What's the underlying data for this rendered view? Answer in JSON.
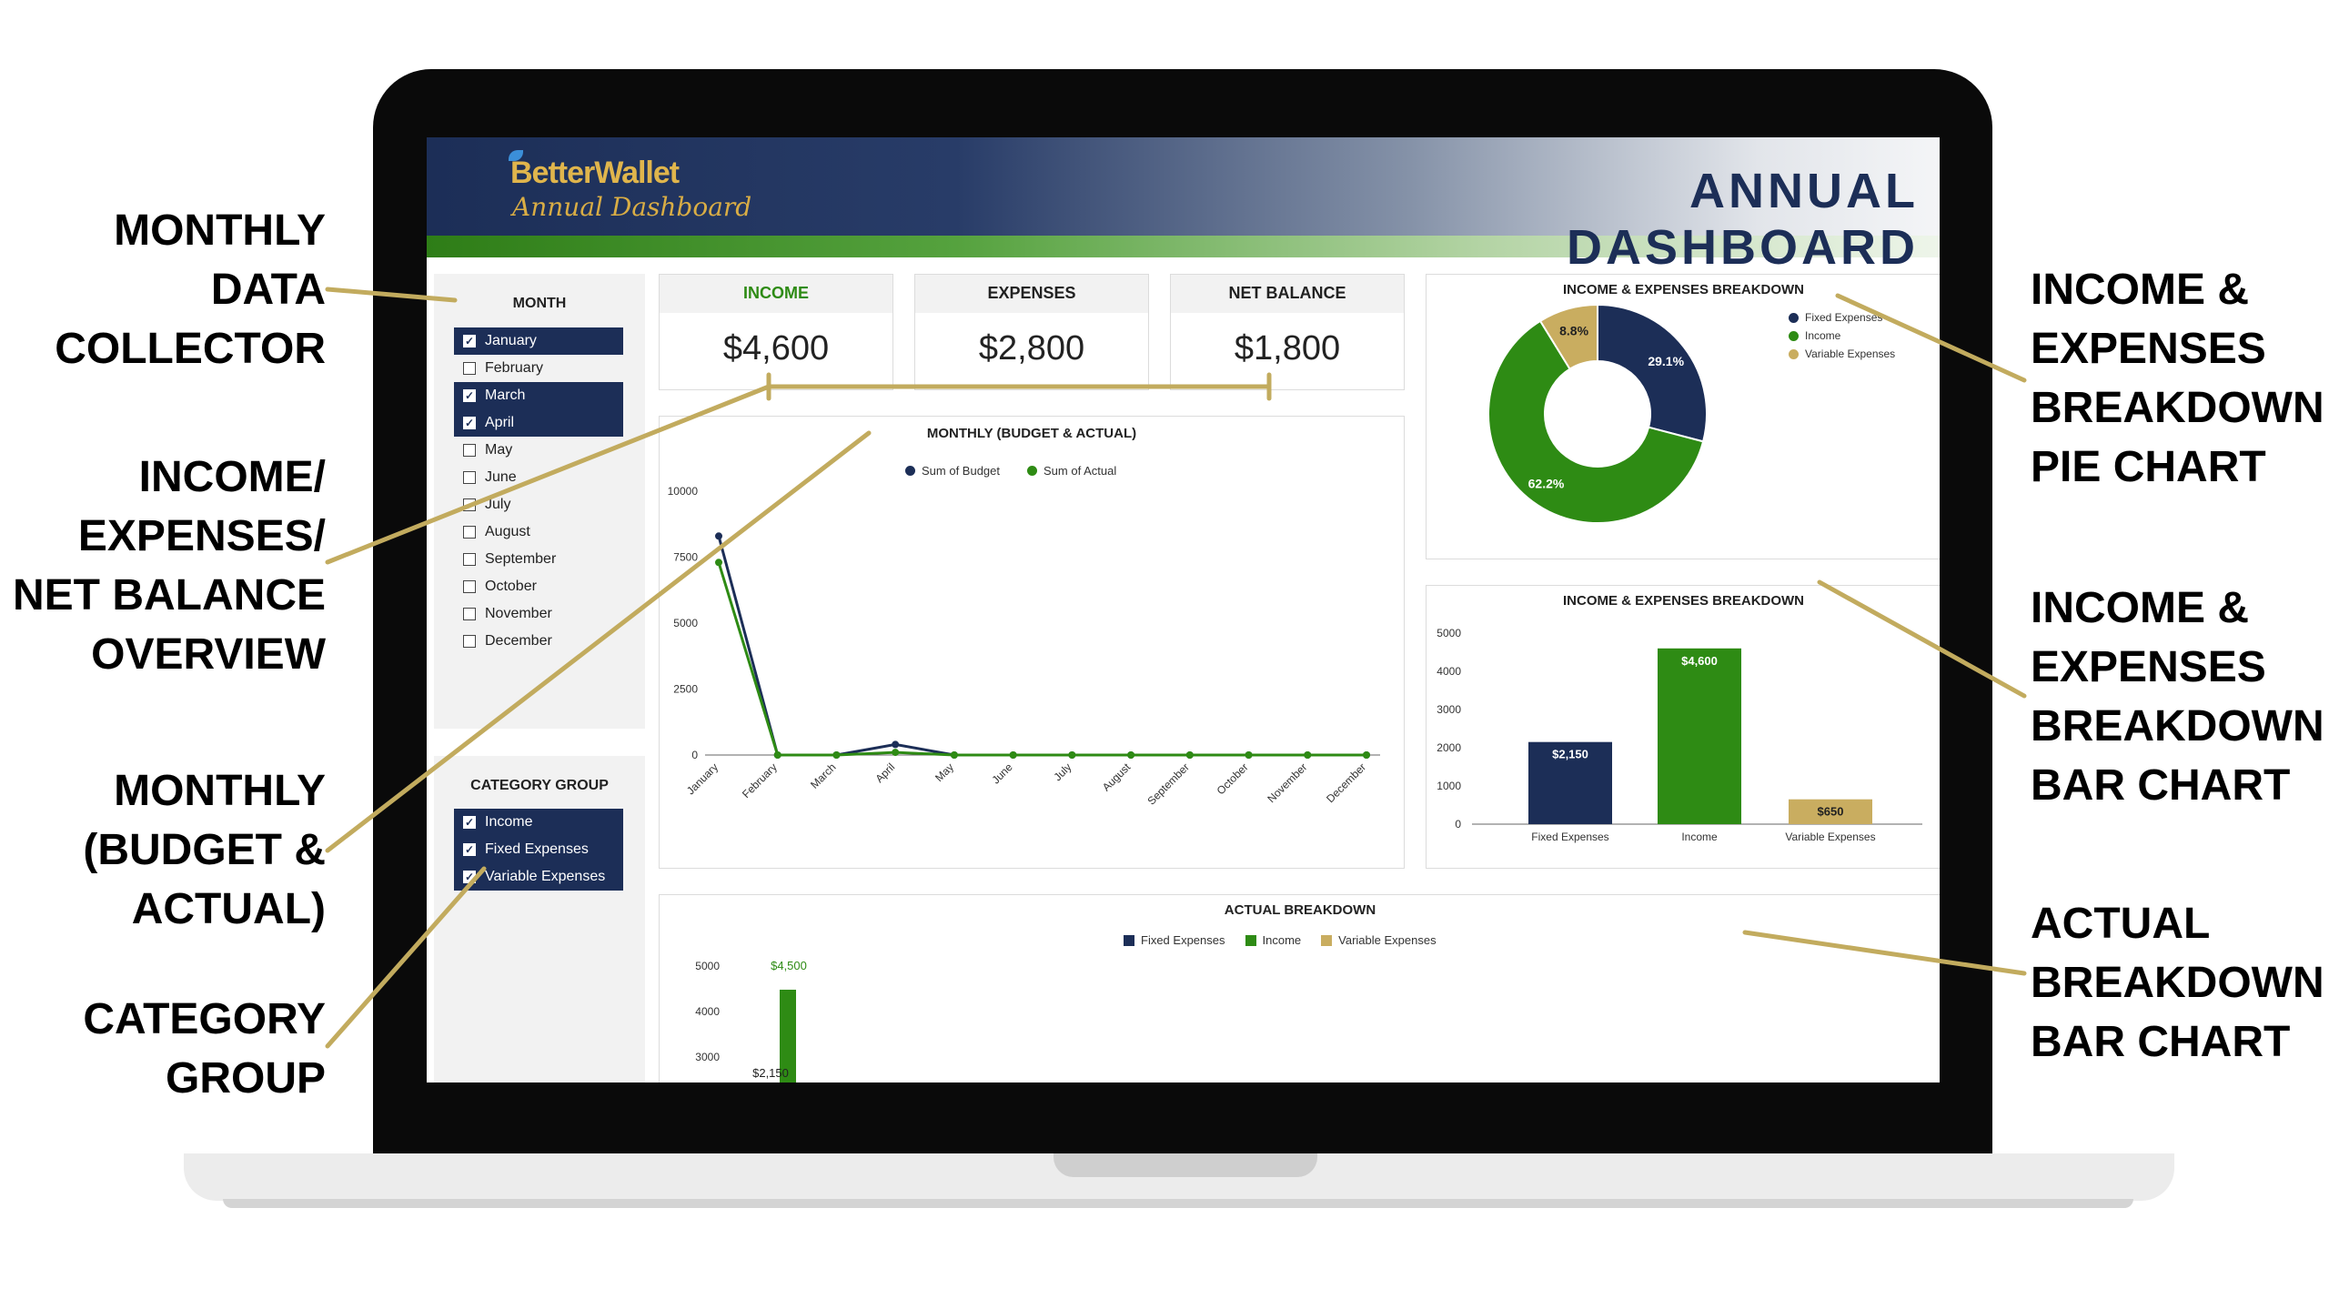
{
  "annotations": {
    "monthly_data_collector": [
      "MONTHLY",
      "DATA",
      "COLLECTOR"
    ],
    "income_expenses_overview": [
      "INCOME/",
      "EXPENSES/",
      "NET BALANCE",
      "OVERVIEW"
    ],
    "monthly_budget_actual": [
      "MONTHLY",
      "(BUDGET &",
      "ACTUAL)"
    ],
    "category_group": [
      "CATEGORY",
      "GROUP"
    ],
    "pie_chart": [
      "INCOME &",
      "EXPENSES",
      "BREAKDOWN",
      "PIE CHART"
    ],
    "bar_chart": [
      "INCOME &",
      "EXPENSES",
      "BREAKDOWN",
      "BAR CHART"
    ],
    "actual_breakdown": [
      "ACTUAL",
      "BREAKDOWN",
      "BAR CHART"
    ]
  },
  "header": {
    "logo_main": "BetterWallet",
    "logo_sub": "Annual Dashboard",
    "title": "ANNUAL  DASHBOARD"
  },
  "month_filter": {
    "title": "MONTH",
    "options": [
      {
        "label": "January",
        "checked": true
      },
      {
        "label": "February",
        "checked": false
      },
      {
        "label": "March",
        "checked": true
      },
      {
        "label": "April",
        "checked": true
      },
      {
        "label": "May",
        "checked": false
      },
      {
        "label": "June",
        "checked": false
      },
      {
        "label": "July",
        "checked": false
      },
      {
        "label": "August",
        "checked": false
      },
      {
        "label": "September",
        "checked": false
      },
      {
        "label": "October",
        "checked": false
      },
      {
        "label": "November",
        "checked": false
      },
      {
        "label": "December",
        "checked": false
      }
    ]
  },
  "category_filter": {
    "title": "CATEGORY GROUP",
    "options": [
      {
        "label": "Income",
        "checked": true
      },
      {
        "label": "Fixed Expenses",
        "checked": true
      },
      {
        "label": "Variable Expenses",
        "checked": true
      }
    ]
  },
  "kpis": {
    "income": {
      "label": "INCOME",
      "value": "$4,600"
    },
    "expenses": {
      "label": "EXPENSES",
      "value": "$2,800"
    },
    "net_balance": {
      "label": "NET BALANCE",
      "value": "$1,800"
    }
  },
  "colors": {
    "navy": "#1c2e57",
    "green": "#2e8b14",
    "gold": "#c9ad60",
    "annotation_line": "#c2ab5e",
    "income_label": "#2e8b14"
  },
  "chart_data": [
    {
      "type": "line",
      "title": "MONTHLY (BUDGET &  ACTUAL)",
      "categories": [
        "January",
        "February",
        "March",
        "April",
        "May",
        "June",
        "July",
        "August",
        "September",
        "October",
        "November",
        "December"
      ],
      "series": [
        {
          "name": "Sum of Budget",
          "values": [
            8300,
            0,
            0,
            400,
            0,
            0,
            0,
            0,
            0,
            0,
            0,
            0
          ]
        },
        {
          "name": "Sum of Actual",
          "values": [
            7300,
            0,
            0,
            100,
            0,
            0,
            0,
            0,
            0,
            0,
            0,
            0
          ]
        }
      ],
      "ylim": [
        0,
        10000
      ],
      "yticks": [
        "10000",
        "7500",
        "5000",
        "2500",
        "0"
      ],
      "legend": "top"
    },
    {
      "type": "pie",
      "title": "INCOME & EXPENSES BREAKDOWN",
      "categories": [
        "Fixed Expenses",
        "Income",
        "Variable Expenses"
      ],
      "values": [
        29.1,
        62.2,
        8.8
      ],
      "labels": [
        "29.1%",
        "62.2%",
        "8.8%"
      ],
      "legend": "right"
    },
    {
      "type": "bar",
      "title": "INCOME & EXPENSES BREAKDOWN",
      "categories": [
        "Fixed Expenses",
        "Income",
        "Variable Expenses"
      ],
      "values": [
        2150,
        4600,
        650
      ],
      "labels": [
        "$2,150",
        "$4,600",
        "$650"
      ],
      "ylim": [
        0,
        5000
      ],
      "yticks": [
        "5000",
        "4000",
        "3000",
        "2000",
        "1000",
        "0"
      ]
    },
    {
      "type": "bar",
      "title": "ACTUAL BREAKDOWN",
      "categories": [
        "Fixed Expenses",
        "Income",
        "Variable Expenses"
      ],
      "series_labels": [
        "Fixed Expenses",
        "Income",
        "Variable Expenses"
      ],
      "visible_labels": [
        "$4,500",
        "$2,150"
      ],
      "yticks": [
        "5000",
        "4000",
        "3000"
      ],
      "legend": "top"
    }
  ]
}
